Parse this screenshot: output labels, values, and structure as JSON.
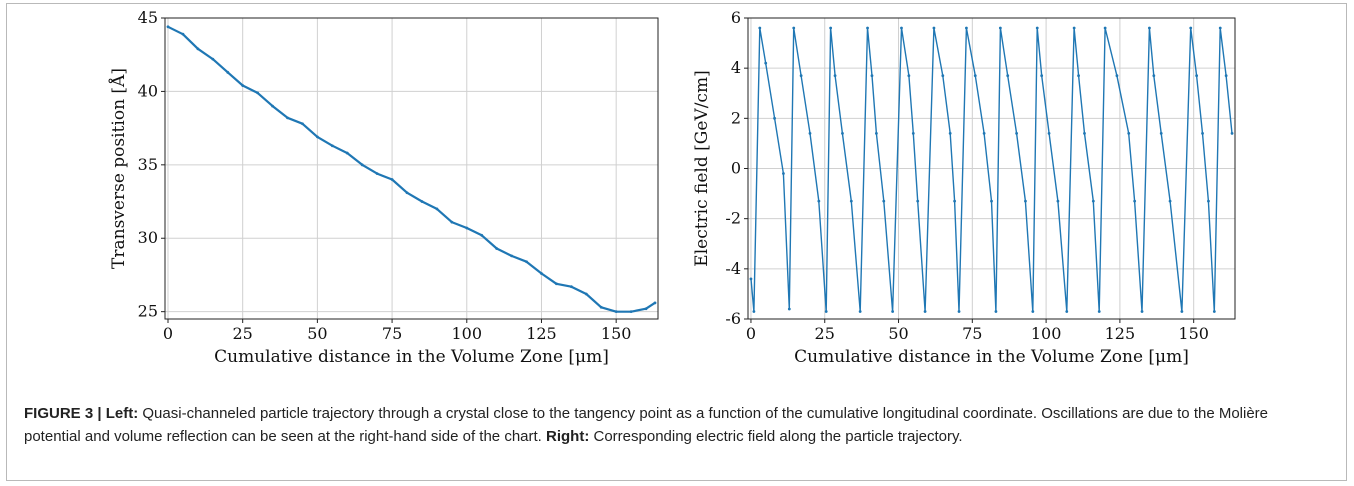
{
  "caption": {
    "fig_label": "FIGURE 3 | ",
    "left_label": "Left:",
    "left_text": " Quasi-channeled particle trajectory through a crystal close to the tangency point as a function of the cumulative longitudinal coordinate. Oscillations are due to the Molière potential and volume reflection can be seen at the right-hand side of the chart. ",
    "right_label": "Right:",
    "right_text": " Corresponding electric field along the particle trajectory."
  },
  "chart_data": [
    {
      "type": "line",
      "id": "left",
      "xlabel": "Cumulative distance in the Volume Zone [μm]",
      "ylabel": "Transverse position [Å]",
      "xlim": [
        -1,
        164
      ],
      "ylim": [
        24.5,
        45
      ],
      "xticks": [
        0,
        25,
        50,
        75,
        100,
        125,
        150
      ],
      "yticks": [
        25,
        30,
        35,
        40,
        45
      ],
      "grid": true,
      "color": "#1f77b4",
      "series": [
        {
          "x": [
            0,
            5,
            10,
            15,
            20,
            25,
            30,
            35,
            40,
            45,
            50,
            55,
            60,
            65,
            70,
            75,
            80,
            85,
            90,
            95,
            100,
            105,
            110,
            115,
            120,
            125,
            130,
            135,
            140,
            145,
            150,
            155,
            160,
            163
          ],
          "values": [
            44.4,
            43.9,
            42.9,
            42.2,
            41.3,
            40.4,
            39.9,
            39.0,
            38.2,
            37.8,
            36.9,
            36.3,
            35.8,
            35.0,
            34.4,
            34.0,
            33.1,
            32.5,
            32.0,
            31.1,
            30.7,
            30.2,
            29.3,
            28.8,
            28.4,
            27.6,
            26.9,
            26.7,
            26.2,
            25.3,
            25.0,
            25.0,
            25.2,
            25.6
          ]
        }
      ]
    },
    {
      "type": "line",
      "id": "right",
      "xlabel": "Cumulative distance in the Volume Zone [μm]",
      "ylabel": "Electric field [GeV/cm]",
      "xlim": [
        -1,
        164
      ],
      "ylim": [
        -6,
        6
      ],
      "xticks": [
        0,
        25,
        50,
        75,
        100,
        125,
        150
      ],
      "yticks": [
        -6,
        -4,
        -2,
        0,
        2,
        4,
        6
      ],
      "grid": true,
      "color": "#1f77b4",
      "series": [
        {
          "x": [
            0,
            1,
            3,
            5,
            8,
            11,
            13,
            14.5,
            17,
            20,
            23,
            25.5,
            27,
            28.5,
            31,
            34,
            37,
            39.5,
            41,
            42.5,
            45,
            48,
            51,
            53.5,
            55,
            56.5,
            59,
            62,
            65,
            67.5,
            69,
            70.5,
            73,
            76,
            79,
            81.5,
            83,
            84.5,
            87,
            90,
            93,
            95.5,
            97,
            98.5,
            101,
            104,
            107,
            109.5,
            111,
            113,
            116,
            118,
            120,
            124,
            128,
            130,
            132.5,
            135,
            136.5,
            139,
            142,
            146,
            149,
            151,
            153,
            155,
            157,
            159,
            161,
            163
          ],
          "values": [
            -4.4,
            -5.7,
            5.6,
            4.2,
            2.0,
            -0.2,
            -5.6,
            5.6,
            3.7,
            1.4,
            -1.3,
            -5.7,
            5.6,
            3.7,
            1.4,
            -1.3,
            -5.7,
            5.6,
            3.7,
            1.4,
            -1.3,
            -5.7,
            5.6,
            3.7,
            1.4,
            -1.3,
            -5.7,
            5.6,
            3.7,
            1.4,
            -1.3,
            -5.7,
            5.6,
            3.7,
            1.4,
            -1.3,
            -5.7,
            5.6,
            3.7,
            1.4,
            -1.3,
            -5.7,
            5.6,
            3.7,
            1.4,
            -1.3,
            -5.7,
            5.6,
            3.7,
            1.4,
            -1.3,
            -5.7,
            5.6,
            3.7,
            1.4,
            -1.3,
            -5.7,
            5.6,
            3.7,
            1.4,
            -1.3,
            -5.7,
            5.6,
            3.7,
            1.4,
            -1.3,
            -5.7,
            5.6,
            3.7,
            1.4
          ]
        }
      ]
    }
  ]
}
